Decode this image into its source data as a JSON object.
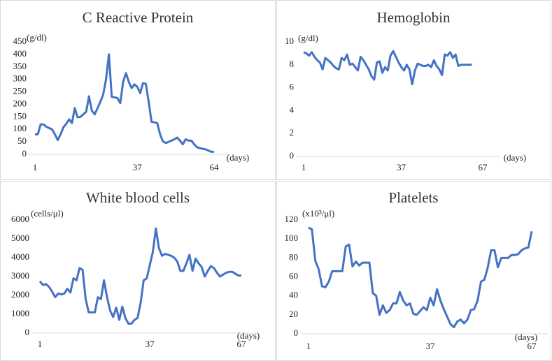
{
  "chart_data": [
    {
      "type": "line",
      "title": "C Reactive Protein",
      "y_label": "(g/dl)",
      "x_label": "(days)",
      "color": "#4472c4",
      "x": [
        1,
        2,
        3,
        4,
        5,
        6,
        7,
        8,
        9,
        10,
        11,
        12,
        13,
        14,
        15,
        16,
        17,
        18,
        19,
        20,
        21,
        22,
        23,
        24,
        25,
        26,
        27,
        28,
        29,
        30,
        31,
        32,
        33,
        34,
        35,
        36,
        37,
        38,
        39,
        40,
        41,
        42,
        43,
        44,
        45,
        46,
        47,
        48,
        49,
        50,
        51,
        52,
        53,
        54,
        55,
        56,
        57,
        58,
        59,
        60,
        61,
        62,
        63,
        64
      ],
      "values": [
        80,
        80,
        120,
        120,
        110,
        105,
        100,
        80,
        57,
        80,
        108,
        122,
        140,
        125,
        185,
        148,
        150,
        160,
        170,
        232,
        175,
        160,
        185,
        210,
        240,
        300,
        400,
        230,
        228,
        225,
        205,
        290,
        325,
        290,
        265,
        280,
        270,
        245,
        285,
        282,
        210,
        130,
        128,
        125,
        80,
        52,
        45,
        50,
        55,
        60,
        67,
        55,
        40,
        60,
        55,
        55,
        40,
        28,
        25,
        22,
        20,
        15,
        10,
        10
      ],
      "xlim": [
        1,
        64
      ],
      "xticks": [
        1,
        37,
        64
      ],
      "ylim": [
        0,
        450
      ],
      "yticks": [
        0,
        50,
        100,
        150,
        200,
        250,
        300,
        350,
        400,
        450
      ]
    },
    {
      "type": "line",
      "title": "Hemoglobin",
      "y_label": "(g/dl)",
      "x_label": "(days)",
      "color": "#4472c4",
      "x": [
        1,
        2,
        3,
        4,
        5,
        6,
        7,
        8,
        9,
        10,
        11,
        12,
        13,
        14,
        15,
        16,
        17,
        18,
        19,
        20,
        21,
        22,
        23,
        24,
        25,
        26,
        27,
        28,
        29,
        30,
        31,
        32,
        33,
        34,
        35,
        36,
        37,
        38,
        39,
        40,
        41,
        42,
        43,
        44,
        45,
        46,
        47,
        48,
        49,
        50,
        51,
        52,
        53,
        54,
        55,
        56,
        57,
        58,
        59,
        60,
        61,
        62,
        63
      ],
      "values": [
        9.1,
        9.0,
        8.8,
        9.1,
        8.7,
        8.4,
        8.2,
        7.6,
        8.6,
        8.4,
        8.2,
        7.9,
        7.7,
        7.6,
        8.6,
        8.4,
        8.9,
        8.0,
        8.1,
        7.8,
        7.5,
        8.7,
        8.4,
        8.0,
        7.6,
        7.0,
        6.7,
        8.2,
        8.3,
        7.3,
        7.8,
        7.5,
        8.8,
        9.2,
        8.7,
        8.2,
        7.8,
        7.5,
        8.0,
        7.6,
        6.3,
        7.5,
        8.1,
        8.0,
        7.9,
        7.9,
        8.0,
        7.8,
        8.4,
        7.9,
        7.6,
        7.1,
        8.9,
        8.8,
        9.1,
        8.6,
        8.9,
        7.9,
        8.0,
        8.0,
        8.0,
        8.0,
        8.0
      ],
      "xlim": [
        1,
        67
      ],
      "xticks": [
        1,
        37,
        67
      ],
      "ylim": [
        0,
        10
      ],
      "yticks": [
        0,
        2,
        4,
        6,
        8,
        10
      ]
    },
    {
      "type": "line",
      "title": "White blood cells",
      "y_label": "(cells/μl)",
      "x_label": "(days)",
      "color": "#4472c4",
      "x": [
        1,
        2,
        3,
        4,
        5,
        6,
        7,
        8,
        9,
        10,
        11,
        12,
        13,
        14,
        15,
        16,
        17,
        18,
        19,
        20,
        21,
        22,
        23,
        24,
        25,
        26,
        27,
        28,
        29,
        30,
        31,
        32,
        33,
        34,
        35,
        36,
        37,
        38,
        39,
        40,
        41,
        42,
        43,
        44,
        45,
        46,
        47,
        48,
        49,
        50,
        51,
        52,
        53,
        54,
        55,
        56,
        57,
        58,
        59,
        60,
        61,
        62,
        63,
        64,
        65,
        66,
        67
      ],
      "values": [
        2750,
        2550,
        2600,
        2450,
        2200,
        1900,
        2100,
        2050,
        2100,
        2350,
        2150,
        2900,
        2800,
        3450,
        3350,
        1800,
        1100,
        1100,
        1100,
        1900,
        1800,
        2800,
        1900,
        1200,
        850,
        1350,
        700,
        1400,
        800,
        500,
        500,
        700,
        800,
        1600,
        2800,
        2900,
        3600,
        4300,
        5550,
        4500,
        4100,
        4200,
        4150,
        4100,
        4000,
        3800,
        3300,
        3300,
        3700,
        4150,
        3300,
        3950,
        3700,
        3500,
        3000,
        3300,
        3550,
        3450,
        3200,
        3000,
        3100,
        3200,
        3250,
        3250,
        3150,
        3050,
        3050
      ],
      "xlim": [
        1,
        67
      ],
      "xticks": [
        1,
        37,
        67
      ],
      "ylim": [
        0,
        6000
      ],
      "yticks": [
        0,
        1000,
        2000,
        3000,
        4000,
        5000,
        6000
      ]
    },
    {
      "type": "line",
      "title": "Platelets",
      "y_label": "(x10³/μl)",
      "x_label": "(days)",
      "color": "#4472c4",
      "x": [
        1,
        2,
        3,
        4,
        5,
        6,
        7,
        8,
        9,
        10,
        11,
        12,
        13,
        14,
        15,
        16,
        17,
        18,
        19,
        20,
        21,
        22,
        23,
        24,
        25,
        26,
        27,
        28,
        29,
        30,
        31,
        32,
        33,
        34,
        35,
        36,
        37,
        38,
        39,
        40,
        41,
        42,
        43,
        44,
        45,
        46,
        47,
        48,
        49,
        50,
        51,
        52,
        53,
        54,
        55,
        56,
        57,
        58,
        59,
        60,
        61,
        62,
        63,
        64,
        65,
        66,
        67
      ],
      "values": [
        112,
        110,
        77,
        68,
        50,
        49,
        55,
        66,
        66,
        66,
        66,
        92,
        94,
        71,
        76,
        72,
        75,
        75,
        75,
        43,
        40,
        20,
        30,
        22,
        25,
        32,
        32,
        44,
        35,
        30,
        32,
        21,
        20,
        24,
        28,
        25,
        38,
        30,
        47,
        35,
        26,
        18,
        10,
        7,
        13,
        15,
        11,
        15,
        25,
        26,
        35,
        55,
        57,
        70,
        88,
        88,
        70,
        80,
        80,
        80,
        83,
        83,
        84,
        88,
        90,
        91,
        108
      ],
      "xlim": [
        1,
        67
      ],
      "xticks": [
        1,
        37,
        67
      ],
      "ylim": [
        0,
        120
      ],
      "yticks": [
        0,
        20,
        40,
        60,
        80,
        100,
        120
      ]
    }
  ]
}
